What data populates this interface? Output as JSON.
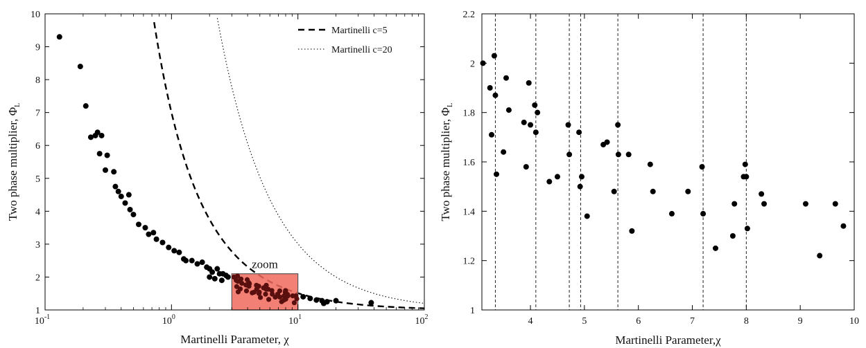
{
  "colors": {
    "markers": "#000000",
    "zoom_box_fill": "#f06a5c",
    "zoom_box_stroke": "#555555",
    "axes": "#000000"
  },
  "chart_data": [
    {
      "type": "scatter",
      "xscale": "log",
      "xlim": [
        0.1,
        100
      ],
      "ylim": [
        1,
        10
      ],
      "xlabel": "Martinelli Parameter,  χ",
      "ylabel": "Two phase multiplier, Φ",
      "ylabel_subscript": "L",
      "x_ticks": [
        {
          "value": 0.1,
          "base": "10",
          "exp": "-1"
        },
        {
          "value": 1,
          "base": "10",
          "exp": "0"
        },
        {
          "value": 10,
          "base": "10",
          "exp": "1"
        },
        {
          "value": 100,
          "base": "10",
          "exp": "2"
        }
      ],
      "y_ticks": [
        "1",
        "2",
        "3",
        "4",
        "5",
        "6",
        "7",
        "8",
        "9",
        "10"
      ],
      "grid": false,
      "legend_position": "top-right",
      "legend": [
        {
          "label": "Martinelli c=5",
          "style": "dashed",
          "c": 5
        },
        {
          "label": "Martinelli c=20",
          "style": "dotted",
          "c": 20
        }
      ],
      "zoom_label": "zoom",
      "zoom_region": {
        "x": [
          3,
          10
        ],
        "y": [
          1,
          2.1
        ]
      },
      "points": [
        [
          0.13,
          9.3
        ],
        [
          0.19,
          8.4
        ],
        [
          0.21,
          7.2
        ],
        [
          0.23,
          6.25
        ],
        [
          0.25,
          6.3
        ],
        [
          0.26,
          6.4
        ],
        [
          0.28,
          6.3
        ],
        [
          0.27,
          5.75
        ],
        [
          0.31,
          5.7
        ],
        [
          0.3,
          5.25
        ],
        [
          0.35,
          5.2
        ],
        [
          0.36,
          4.75
        ],
        [
          0.38,
          4.6
        ],
        [
          0.4,
          4.45
        ],
        [
          0.43,
          4.25
        ],
        [
          0.46,
          4.5
        ],
        [
          0.47,
          4.05
        ],
        [
          0.5,
          3.9
        ],
        [
          0.55,
          3.6
        ],
        [
          0.62,
          3.5
        ],
        [
          0.66,
          3.3
        ],
        [
          0.72,
          3.35
        ],
        [
          0.76,
          3.15
        ],
        [
          0.85,
          3.05
        ],
        [
          0.95,
          2.9
        ],
        [
          1.05,
          2.8
        ],
        [
          1.15,
          2.75
        ],
        [
          1.25,
          2.55
        ],
        [
          1.3,
          2.5
        ],
        [
          1.45,
          2.5
        ],
        [
          1.6,
          2.4
        ],
        [
          1.75,
          2.45
        ],
        [
          1.9,
          2.3
        ],
        [
          2.0,
          2.25
        ],
        [
          2.1,
          2.15
        ],
        [
          2.3,
          2.25
        ],
        [
          2.4,
          2.1
        ],
        [
          2.55,
          2.1
        ],
        [
          2.7,
          2.05
        ],
        [
          2.8,
          2.0
        ],
        [
          2.0,
          2.0
        ],
        [
          2.2,
          1.95
        ],
        [
          2.5,
          1.9
        ],
        [
          11.0,
          1.4
        ],
        [
          12.5,
          1.35
        ],
        [
          14.0,
          1.3
        ],
        [
          15.5,
          1.28
        ],
        [
          17.0,
          1.25
        ],
        [
          20.0,
          1.28
        ],
        [
          16.0,
          1.2
        ],
        [
          38.0,
          1.22
        ]
      ],
      "zoomed_points_in_region": true
    },
    {
      "type": "scatter",
      "xlim": [
        3.1,
        10
      ],
      "ylim": [
        1,
        2.2
      ],
      "xlabel": "Martinelli Parameter,χ",
      "ylabel": "Two phase multiplier, Φ",
      "ylabel_subscript": "L",
      "x_ticks": [
        "4",
        "5",
        "6",
        "7",
        "8",
        "9",
        "10"
      ],
      "y_ticks": [
        "1",
        "1.2",
        "1.4",
        "1.6",
        "1.8",
        "2",
        "2.2"
      ],
      "grid": false,
      "vertical_lines": [
        3.35,
        4.1,
        4.72,
        4.93,
        5.62,
        7.2,
        8.0
      ],
      "points": [
        [
          3.12,
          2.0
        ],
        [
          3.25,
          1.9
        ],
        [
          3.28,
          1.71
        ],
        [
          3.33,
          2.03
        ],
        [
          3.35,
          1.87
        ],
        [
          3.37,
          1.55
        ],
        [
          3.5,
          1.64
        ],
        [
          3.55,
          1.94
        ],
        [
          3.6,
          1.81
        ],
        [
          3.88,
          1.76
        ],
        [
          3.92,
          1.58
        ],
        [
          3.97,
          1.92
        ],
        [
          4.0,
          1.75
        ],
        [
          4.08,
          1.83
        ],
        [
          4.1,
          1.72
        ],
        [
          4.13,
          1.8
        ],
        [
          4.35,
          1.52
        ],
        [
          4.5,
          1.54
        ],
        [
          4.7,
          1.75
        ],
        [
          4.72,
          1.63
        ],
        [
          4.9,
          1.72
        ],
        [
          4.92,
          1.5
        ],
        [
          4.95,
          1.54
        ],
        [
          5.05,
          1.38
        ],
        [
          5.35,
          1.67
        ],
        [
          5.42,
          1.68
        ],
        [
          5.55,
          1.48
        ],
        [
          5.62,
          1.75
        ],
        [
          5.63,
          1.63
        ],
        [
          5.82,
          1.63
        ],
        [
          5.88,
          1.32
        ],
        [
          6.22,
          1.59
        ],
        [
          6.27,
          1.48
        ],
        [
          6.62,
          1.39
        ],
        [
          6.92,
          1.48
        ],
        [
          7.18,
          1.58
        ],
        [
          7.2,
          1.39
        ],
        [
          7.43,
          1.25
        ],
        [
          7.75,
          1.3
        ],
        [
          7.78,
          1.43
        ],
        [
          7.95,
          1.54
        ],
        [
          7.98,
          1.59
        ],
        [
          8.0,
          1.54
        ],
        [
          8.02,
          1.33
        ],
        [
          8.28,
          1.47
        ],
        [
          8.33,
          1.43
        ],
        [
          9.1,
          1.43
        ],
        [
          9.36,
          1.22
        ],
        [
          9.65,
          1.43
        ],
        [
          9.8,
          1.34
        ]
      ]
    }
  ]
}
